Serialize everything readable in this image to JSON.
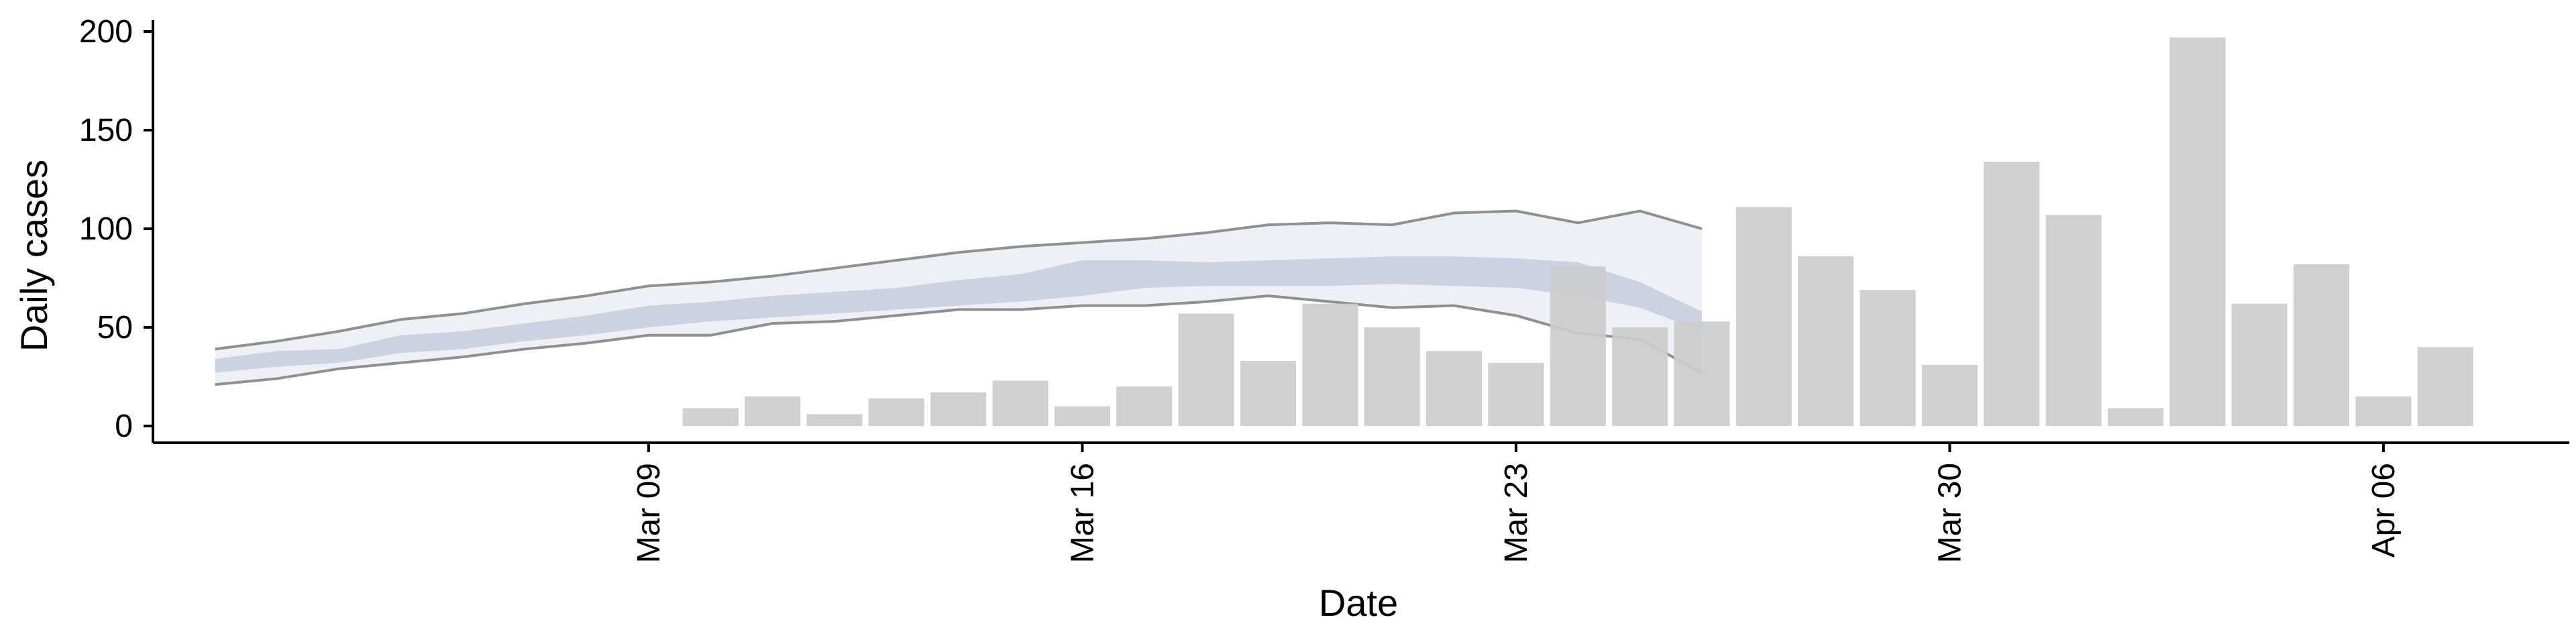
{
  "chart_data": {
    "type": "bar",
    "title": "",
    "xlabel": "Date",
    "ylabel": "Daily cases",
    "ylim": [
      0,
      200
    ],
    "yticks": [
      "0",
      "50",
      "100",
      "150",
      "200"
    ],
    "xlim": [
      "2020-03-01",
      "2020-04-09"
    ],
    "xticks": [
      {
        "date": "2020-03-09",
        "label": "Mar 09"
      },
      {
        "date": "2020-03-16",
        "label": "Mar 16"
      },
      {
        "date": "2020-03-23",
        "label": "Mar 23"
      },
      {
        "date": "2020-03-30",
        "label": "Mar 30"
      },
      {
        "date": "2020-04-06",
        "label": "Apr 06"
      }
    ],
    "grid": false,
    "legend": "none",
    "colors": {
      "bars": "#cccccc",
      "outer_band": "#b4bbd3",
      "inner_band": "#8f9bbf",
      "bound_lines": "#6e6e6e",
      "axis": "#000000"
    },
    "bars": [
      {
        "date": "2020-03-10",
        "value": 9
      },
      {
        "date": "2020-03-11",
        "value": 15
      },
      {
        "date": "2020-03-12",
        "value": 6
      },
      {
        "date": "2020-03-13",
        "value": 14
      },
      {
        "date": "2020-03-14",
        "value": 17
      },
      {
        "date": "2020-03-15",
        "value": 23
      },
      {
        "date": "2020-03-16",
        "value": 10
      },
      {
        "date": "2020-03-17",
        "value": 20
      },
      {
        "date": "2020-03-18",
        "value": 57
      },
      {
        "date": "2020-03-19",
        "value": 33
      },
      {
        "date": "2020-03-20",
        "value": 62
      },
      {
        "date": "2020-03-21",
        "value": 50
      },
      {
        "date": "2020-03-22",
        "value": 38
      },
      {
        "date": "2020-03-23",
        "value": 32
      },
      {
        "date": "2020-03-24",
        "value": 81
      },
      {
        "date": "2020-03-25",
        "value": 50
      },
      {
        "date": "2020-03-26",
        "value": 53
      },
      {
        "date": "2020-03-27",
        "value": 111
      },
      {
        "date": "2020-03-28",
        "value": 86
      },
      {
        "date": "2020-03-29",
        "value": 69
      },
      {
        "date": "2020-03-30",
        "value": 31
      },
      {
        "date": "2020-03-31",
        "value": 134
      },
      {
        "date": "2020-04-01",
        "value": 107
      },
      {
        "date": "2020-04-02",
        "value": 9
      },
      {
        "date": "2020-04-03",
        "value": 197
      },
      {
        "date": "2020-04-04",
        "value": 62
      },
      {
        "date": "2020-04-05",
        "value": 82
      },
      {
        "date": "2020-04-06",
        "value": 15
      },
      {
        "date": "2020-04-07",
        "value": 40
      }
    ],
    "band": {
      "dates": [
        "2020-03-02",
        "2020-03-03",
        "2020-03-04",
        "2020-03-05",
        "2020-03-06",
        "2020-03-07",
        "2020-03-08",
        "2020-03-09",
        "2020-03-10",
        "2020-03-11",
        "2020-03-12",
        "2020-03-13",
        "2020-03-14",
        "2020-03-15",
        "2020-03-16",
        "2020-03-17",
        "2020-03-18",
        "2020-03-19",
        "2020-03-20",
        "2020-03-21",
        "2020-03-22",
        "2020-03-23",
        "2020-03-24",
        "2020-03-25",
        "2020-03-26",
        "2020-03-27",
        "2020-03-28",
        "2020-03-29"
      ],
      "lower_90": [
        21,
        24,
        29,
        32,
        35,
        39,
        42,
        46,
        46,
        52,
        53,
        56,
        59,
        59,
        61,
        61,
        63,
        66,
        63,
        60,
        61,
        56,
        47,
        44,
        27,
        null,
        null,
        null
      ],
      "upper_90": [
        39,
        43,
        48,
        54,
        57,
        62,
        66,
        71,
        73,
        76,
        80,
        84,
        88,
        91,
        93,
        95,
        98,
        102,
        103,
        102,
        108,
        109,
        103,
        109,
        100,
        null,
        null,
        null
      ],
      "lower_50": [
        27,
        30,
        32,
        37,
        39,
        43,
        46,
        50,
        53,
        55,
        57,
        59,
        61,
        63,
        66,
        70,
        71,
        71,
        71,
        72,
        71,
        70,
        66,
        60,
        48,
        null,
        null,
        null
      ],
      "upper_50": [
        34,
        38,
        39,
        46,
        48,
        52,
        56,
        61,
        63,
        66,
        68,
        70,
        74,
        77,
        84,
        84,
        83,
        84,
        85,
        86,
        86,
        85,
        83,
        73,
        58,
        null,
        null,
        null
      ]
    }
  }
}
